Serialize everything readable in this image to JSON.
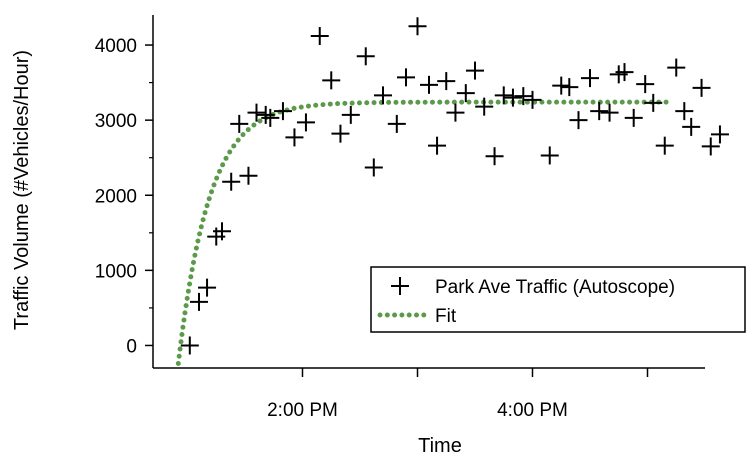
{
  "chart_data": {
    "type": "scatter",
    "title": "",
    "xlabel": "Time",
    "ylabel": "Traffic Volume (#Vehicles/Hour)",
    "x_unit": "hours after 12:00 PM",
    "xlim": [
      0.7,
      5.5
    ],
    "ylim": [
      -300,
      4400
    ],
    "y_ticks": [
      0,
      1000,
      2000,
      3000,
      4000
    ],
    "y_tick_labels": [
      "0",
      "1000",
      "2000",
      "3000",
      "4000"
    ],
    "x_ticks": [
      2,
      3,
      4,
      5
    ],
    "x_tick_labels": [
      "2:00 PM",
      "",
      "4:00 PM",
      ""
    ],
    "grid": false,
    "legend_position": "lower-right",
    "series": [
      {
        "name": "Park Ave Traffic (Autoscope)",
        "marker": "plus",
        "color": "#000000",
        "points": [
          [
            1.02,
            0
          ],
          [
            1.1,
            580
          ],
          [
            1.17,
            770
          ],
          [
            1.25,
            1450
          ],
          [
            1.3,
            1520
          ],
          [
            1.38,
            2180
          ],
          [
            1.45,
            2950
          ],
          [
            1.53,
            2260
          ],
          [
            1.6,
            3100
          ],
          [
            1.68,
            3070
          ],
          [
            1.72,
            3030
          ],
          [
            1.83,
            3120
          ],
          [
            1.93,
            2770
          ],
          [
            2.03,
            2970
          ],
          [
            2.15,
            4120
          ],
          [
            2.25,
            3530
          ],
          [
            2.33,
            2820
          ],
          [
            2.42,
            3070
          ],
          [
            2.55,
            3850
          ],
          [
            2.62,
            2370
          ],
          [
            2.7,
            3330
          ],
          [
            2.82,
            2950
          ],
          [
            2.9,
            3570
          ],
          [
            3.0,
            4250
          ],
          [
            3.1,
            3470
          ],
          [
            3.17,
            2660
          ],
          [
            3.25,
            3520
          ],
          [
            3.33,
            3100
          ],
          [
            3.42,
            3360
          ],
          [
            3.5,
            3660
          ],
          [
            3.58,
            3180
          ],
          [
            3.67,
            2520
          ],
          [
            3.75,
            3330
          ],
          [
            3.83,
            3300
          ],
          [
            3.92,
            3320
          ],
          [
            4.0,
            3270
          ],
          [
            4.15,
            2530
          ],
          [
            4.25,
            3460
          ],
          [
            4.32,
            3440
          ],
          [
            4.4,
            3000
          ],
          [
            4.5,
            3560
          ],
          [
            4.58,
            3120
          ],
          [
            4.67,
            3100
          ],
          [
            4.75,
            3610
          ],
          [
            4.8,
            3640
          ],
          [
            4.88,
            3030
          ],
          [
            4.98,
            3480
          ],
          [
            5.05,
            3230
          ],
          [
            5.15,
            2660
          ],
          [
            5.25,
            3700
          ],
          [
            5.32,
            3120
          ],
          [
            5.38,
            2910
          ],
          [
            5.47,
            3430
          ],
          [
            5.55,
            2650
          ],
          [
            5.63,
            2810
          ]
        ]
      },
      {
        "name": "Fit",
        "style": "dotted-line",
        "color": "#5b9a4a",
        "model": "y = A - B * exp(-(t - t0) / tau)",
        "params": {
          "A": 3240,
          "B": 3480,
          "t0": 0.92,
          "tau": 0.27
        },
        "x_range": [
          0.92,
          5.2
        ]
      }
    ]
  }
}
